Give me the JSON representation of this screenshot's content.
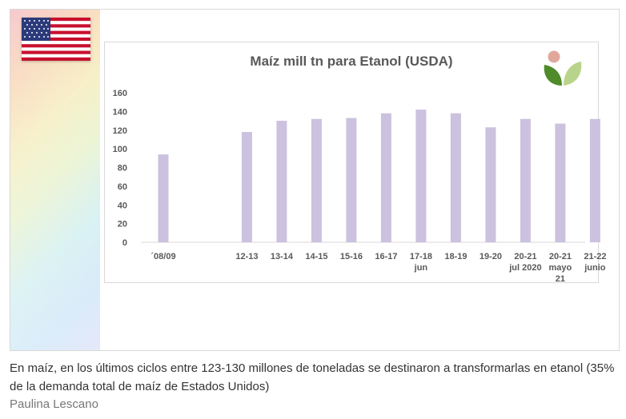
{
  "chart_data": {
    "type": "bar",
    "title": "Maíz mill tn para Etanol (USDA)",
    "categories": [
      "´08/09",
      "12-13",
      "13-14",
      "14-15",
      "15-16",
      "16-17",
      "17-18 jun",
      "18-19",
      "19-20",
      "20-21 jul 2020",
      "20-21 mayo 21",
      "21-22 junio"
    ],
    "category_lines": [
      [
        "´08/09"
      ],
      [
        "12-13"
      ],
      [
        "13-14"
      ],
      [
        "14-15"
      ],
      [
        "15-16"
      ],
      [
        "16-17"
      ],
      [
        "17-18",
        "jun"
      ],
      [
        "18-19"
      ],
      [
        "19-20"
      ],
      [
        "20-21",
        "jul 2020"
      ],
      [
        "20-21",
        "mayo",
        "21"
      ],
      [
        "21-22",
        "junio"
      ]
    ],
    "values": [
      94,
      118,
      130,
      132,
      133,
      138,
      142,
      138,
      123,
      132,
      127,
      132
    ],
    "ylim": [
      0,
      160
    ],
    "yticks": [
      0,
      20,
      40,
      60,
      80,
      100,
      120,
      140,
      160
    ],
    "grid": false,
    "bar_color": "#ccc1de"
  },
  "caption": "En maíz, en los últimos ciclos entre 123-130 millones de toneladas se destinaron a transformarlas en etanol (35% de la demanda total de maíz de Estados Unidos)",
  "author": "Paulina Lescano",
  "icons": {
    "flag": "us-flag-icon",
    "logo": "leaf-logo-icon"
  }
}
